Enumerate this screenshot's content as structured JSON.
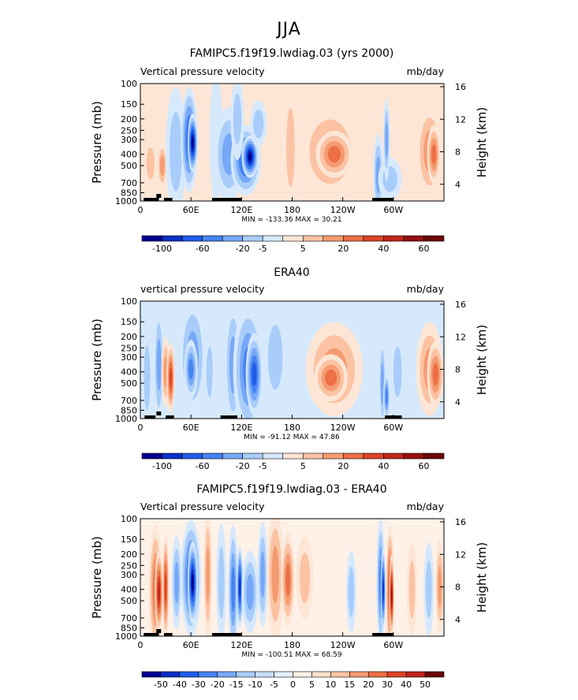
{
  "page_title": "JJA",
  "chart_data": [
    {
      "type": "heatmap",
      "title": "FAMIPC5.f19f19.lwdiag.03 (yrs 2000)",
      "left_string": "Vertical pressure velocity",
      "units": "mb/day",
      "xlabel": "",
      "ylabel": "Pressure (mb)",
      "ylabel_right": "Height (km)",
      "x_ticks": [
        "0",
        "60E",
        "120E",
        "180",
        "120W",
        "60W"
      ],
      "y_ticks": [
        "100",
        "150",
        "200",
        "250",
        "300",
        "400",
        "500",
        "700",
        "850",
        "1000"
      ],
      "y_ticks_right": [
        "16",
        "12",
        "8",
        "4"
      ],
      "xlim": [
        0,
        360
      ],
      "ylim": [
        1000,
        100
      ],
      "min_max_text": "MIN = -133.36   MAX =  30.21",
      "min": -133.36,
      "max": 30.21,
      "colorbar_levels": [
        "-100",
        "-60",
        "-20",
        "-5",
        "5",
        "20",
        "40",
        "60"
      ]
    },
    {
      "type": "heatmap",
      "title": "ERA40",
      "left_string": "vertical pressure velocity",
      "units": "mb/day",
      "xlabel": "",
      "ylabel": "Pressure (mb)",
      "ylabel_right": "Height (km)",
      "x_ticks": [
        "0",
        "60E",
        "120E",
        "180",
        "120W",
        "60W"
      ],
      "y_ticks": [
        "100",
        "150",
        "200",
        "250",
        "300",
        "400",
        "500",
        "700",
        "850",
        "1000"
      ],
      "y_ticks_right": [
        "16",
        "12",
        "8",
        "4"
      ],
      "xlim": [
        0,
        360
      ],
      "ylim": [
        1000,
        100
      ],
      "min_max_text": "MIN = -91.12   MAX =  47.86",
      "min": -91.12,
      "max": 47.86,
      "colorbar_levels": [
        "-100",
        "-60",
        "-20",
        "-5",
        "5",
        "20",
        "40",
        "60"
      ]
    },
    {
      "type": "heatmap",
      "title": "FAMIPC5.f19f19.lwdiag.03 - ERA40",
      "left_string": "Vertical pressure velocity",
      "units": "mb/day",
      "xlabel": "",
      "ylabel": "Pressure (mb)",
      "ylabel_right": "Height (km)",
      "x_ticks": [
        "0",
        "60E",
        "120E",
        "180",
        "120W",
        "60W"
      ],
      "y_ticks": [
        "100",
        "150",
        "200",
        "250",
        "300",
        "400",
        "500",
        "700",
        "850",
        "1000"
      ],
      "y_ticks_right": [
        "16",
        "12",
        "8",
        "4"
      ],
      "xlim": [
        0,
        360
      ],
      "ylim": [
        1000,
        100
      ],
      "min_max_text": "MIN = -100.51   MAX =  68.59",
      "min": -100.51,
      "max": 68.59,
      "colorbar_levels": [
        "-50",
        "-40",
        "-30",
        "-20",
        "-15",
        "-10",
        "-5",
        "0",
        "5",
        "10",
        "15",
        "20",
        "30",
        "40",
        "50"
      ]
    }
  ],
  "colorbar_colors": [
    "#00008f",
    "#0b2fc4",
    "#1f5ce8",
    "#4582f2",
    "#76a8f7",
    "#a9cdfa",
    "#d6e9fc",
    "#fde6d6",
    "#fbc3a3",
    "#f59b71",
    "#ec6f45",
    "#dc4326",
    "#c0261a",
    "#951010",
    "#6b0606"
  ],
  "diff_colorbar_colors": [
    "#00008f",
    "#0b2fc4",
    "#1f5ce8",
    "#4582f2",
    "#76a8f7",
    "#a9cdfa",
    "#c9defb",
    "#e5f0fd",
    "#fdf1e8",
    "#fde0cc",
    "#fbc3a3",
    "#f59b71",
    "#ec6f45",
    "#dc4326",
    "#c0261a",
    "#6b0606"
  ]
}
